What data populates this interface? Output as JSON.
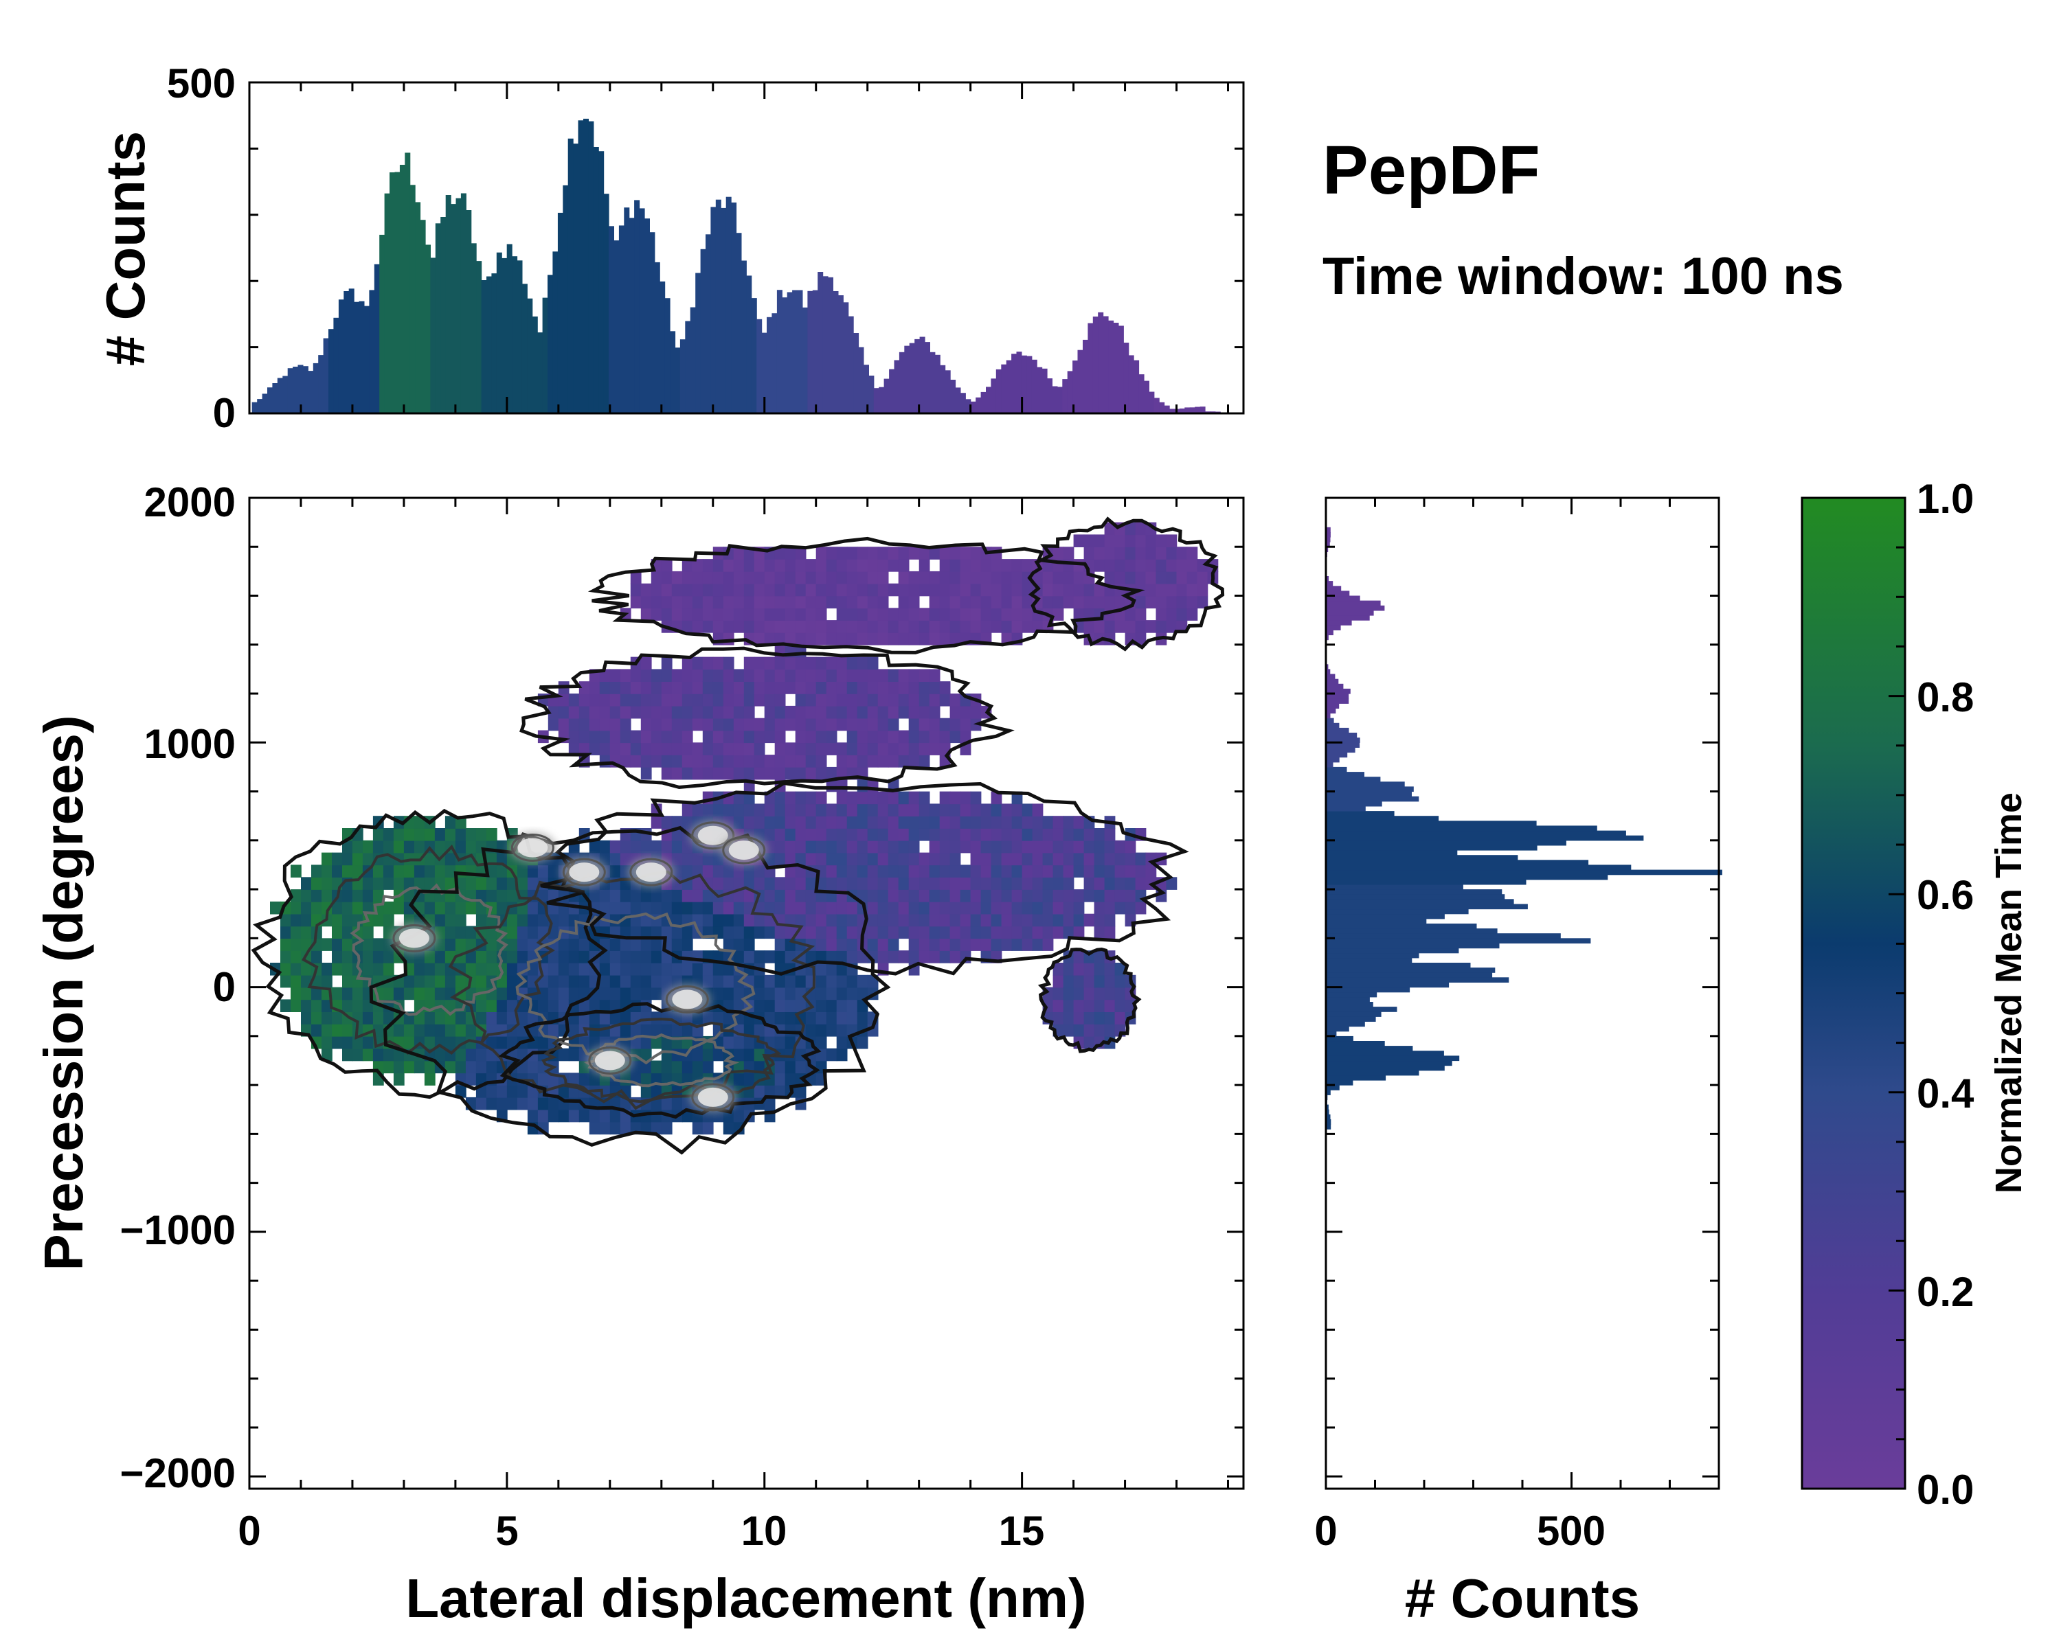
{
  "chart_data": [
    {
      "type": "bar",
      "role": "top-marginal-histogram",
      "ylabel": "# Counts",
      "xlim": [
        0,
        19.3
      ],
      "ylim": [
        0,
        500
      ],
      "yticks": [
        0,
        500
      ],
      "color_by": "Normalized Mean Time",
      "peaks": [
        {
          "x": 1.0,
          "y": 70,
          "c": 0.45
        },
        {
          "x": 2.0,
          "y": 180,
          "c": 0.55
        },
        {
          "x": 3.0,
          "y": 380,
          "c": 0.78
        },
        {
          "x": 4.0,
          "y": 330,
          "c": 0.72
        },
        {
          "x": 5.0,
          "y": 250,
          "c": 0.66
        },
        {
          "x": 6.5,
          "y": 460,
          "c": 0.62
        },
        {
          "x": 7.5,
          "y": 320,
          "c": 0.52
        },
        {
          "x": 9.2,
          "y": 320,
          "c": 0.48
        },
        {
          "x": 10.5,
          "y": 190,
          "c": 0.38
        },
        {
          "x": 11.2,
          "y": 210,
          "c": 0.32
        },
        {
          "x": 13.0,
          "y": 110,
          "c": 0.25
        },
        {
          "x": 15.0,
          "y": 90,
          "c": 0.2
        },
        {
          "x": 16.6,
          "y": 150,
          "c": 0.15
        },
        {
          "x": 18.5,
          "y": 10,
          "c": 0.1
        }
      ]
    },
    {
      "type": "heatmap",
      "role": "main-2d-histogram",
      "xlabel": "Lateral displacement (nm)",
      "ylabel": "Precession (degrees)",
      "xlim": [
        0,
        19.3
      ],
      "ylim": [
        -2050,
        2000
      ],
      "xticks": [
        0,
        5,
        10,
        15
      ],
      "yticks": [
        -2000,
        -1000,
        0,
        1000,
        2000
      ],
      "colormap": [
        "#6a3d9a",
        "#5b3a97",
        "#2f4a8c",
        "#0b3b6e",
        "#1b6b4f",
        "#228b22"
      ],
      "regions": [
        {
          "cx": 3.5,
          "cy": 150,
          "rx": 3.2,
          "ry": 560,
          "c": 0.78
        },
        {
          "cx": 7.5,
          "cy": 0,
          "rx": 4.8,
          "ry": 640,
          "c": 0.5
        },
        {
          "cx": 8.0,
          "cy": -300,
          "rx": 3.0,
          "ry": 220,
          "c": 0.65
        },
        {
          "cx": 12.0,
          "cy": 450,
          "rx": 6.0,
          "ry": 380,
          "c": 0.28
        },
        {
          "cx": 10.0,
          "cy": 1100,
          "rx": 4.5,
          "ry": 280,
          "c": 0.2
        },
        {
          "cx": 12.0,
          "cy": 1600,
          "rx": 5.0,
          "ry": 220,
          "c": 0.12
        },
        {
          "cx": 17.0,
          "cy": 1650,
          "rx": 1.8,
          "ry": 250,
          "c": 0.14
        },
        {
          "cx": 16.3,
          "cy": -50,
          "rx": 0.9,
          "ry": 200,
          "c": 0.3
        }
      ],
      "hotspots": [
        {
          "x": 3.2,
          "y": 200
        },
        {
          "x": 5.5,
          "y": 570
        },
        {
          "x": 6.5,
          "y": 470
        },
        {
          "x": 7.8,
          "y": 470
        },
        {
          "x": 9.0,
          "y": 620
        },
        {
          "x": 9.6,
          "y": 560
        },
        {
          "x": 7.0,
          "y": -300
        },
        {
          "x": 9.0,
          "y": -450
        },
        {
          "x": 8.5,
          "y": -50
        }
      ]
    },
    {
      "type": "bar",
      "orientation": "horizontal",
      "role": "right-marginal-histogram",
      "xlabel": "# Counts",
      "xlim": [
        0,
        800
      ],
      "xticks": [
        0,
        500
      ],
      "peaks": [
        {
          "y": -550,
          "v": 10,
          "c": 0.55
        },
        {
          "y": -300,
          "v": 290,
          "c": 0.55
        },
        {
          "y": -100,
          "v": 130,
          "c": 0.5
        },
        {
          "y": 50,
          "v": 380,
          "c": 0.5
        },
        {
          "y": 200,
          "v": 490,
          "c": 0.5
        },
        {
          "y": 350,
          "v": 440,
          "c": 0.5
        },
        {
          "y": 480,
          "v": 720,
          "c": 0.55
        },
        {
          "y": 620,
          "v": 660,
          "c": 0.55
        },
        {
          "y": 800,
          "v": 200,
          "c": 0.45
        },
        {
          "y": 1000,
          "v": 80,
          "c": 0.35
        },
        {
          "y": 1200,
          "v": 50,
          "c": 0.2
        },
        {
          "y": 1550,
          "v": 110,
          "c": 0.12
        },
        {
          "y": 1850,
          "v": 10,
          "c": 0.1
        }
      ]
    }
  ],
  "title": "PepDF",
  "subtitle": "Time window: 100 ns",
  "top_hist": {
    "ylabel": "# Counts",
    "yticks": [
      "500",
      "0"
    ]
  },
  "main": {
    "xlabel": "Lateral displacement (nm)",
    "ylabel": "Precession (degrees)",
    "xticks": [
      "0",
      "5",
      "10",
      "15"
    ],
    "yticks": [
      "2000",
      "1000",
      "0",
      "−1000",
      "−2000"
    ]
  },
  "right_hist": {
    "xlabel": "# Counts",
    "xticks": [
      "0",
      "500"
    ]
  },
  "colorbar": {
    "label": "Normalized Mean Time",
    "ticks": [
      "1.0",
      "0.8",
      "0.6",
      "0.4",
      "0.2",
      "0.0"
    ]
  }
}
